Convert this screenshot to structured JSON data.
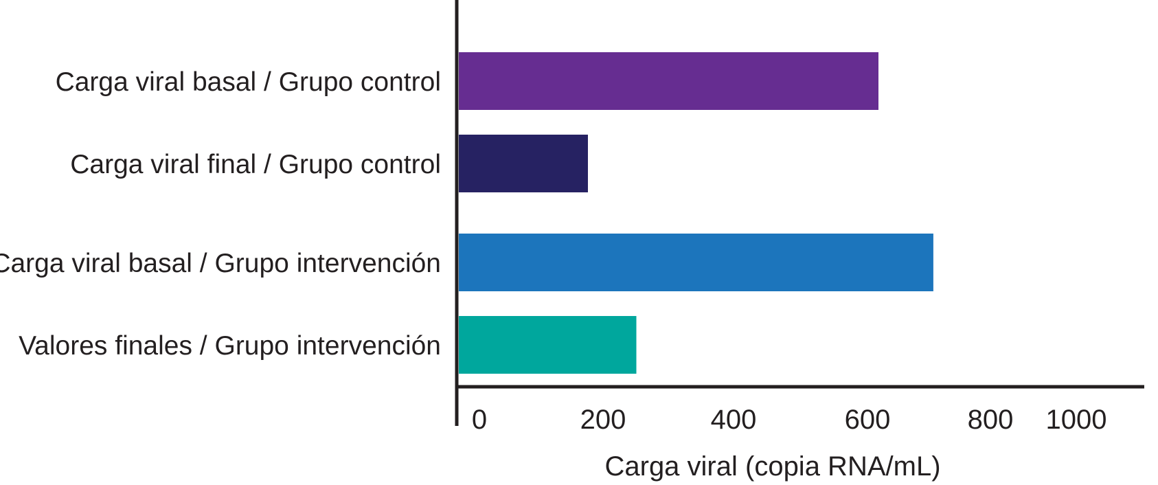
{
  "chart_data": {
    "type": "bar",
    "orientation": "horizontal",
    "title": "",
    "xlabel": "Carga viral (copia RNA/mL)",
    "ylabel": "",
    "xlim": [
      0,
      1000
    ],
    "xticks": [
      "0",
      "200",
      "400",
      "600",
      "800",
      "1000"
    ],
    "grid": false,
    "categories": [
      "Carga viral basal / Grupo control",
      "Carga viral final / Grupo control",
      "Carga viral basal / Grupo intervención",
      "Valores finales / Grupo intervención"
    ],
    "values": [
      650,
      200,
      735,
      275
    ],
    "colors": [
      "#662d91",
      "#262262",
      "#1c75bc",
      "#00a79d"
    ],
    "axis_color": "#231f20"
  }
}
